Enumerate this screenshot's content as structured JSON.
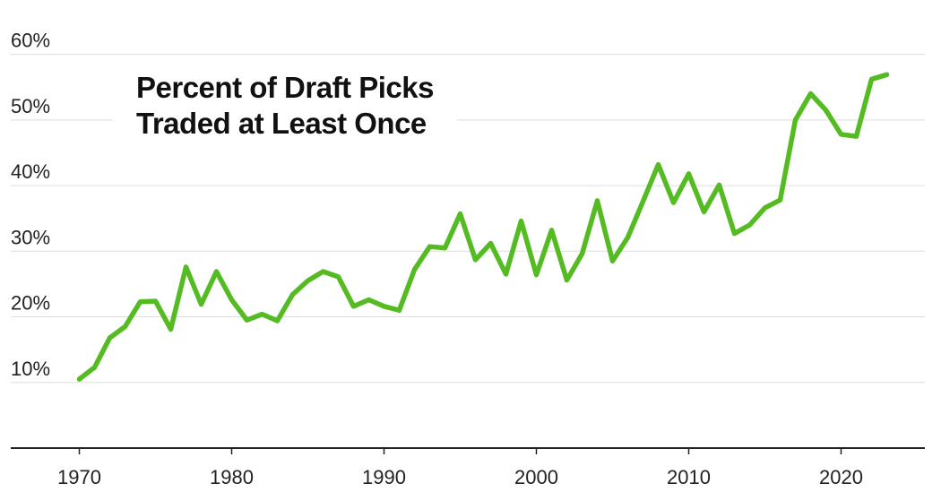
{
  "chart_data": {
    "type": "line",
    "title": "",
    "xlabel": "",
    "ylabel": "",
    "x": [
      1970,
      1971,
      1972,
      1973,
      1974,
      1975,
      1976,
      1977,
      1978,
      1979,
      1980,
      1981,
      1982,
      1983,
      1984,
      1985,
      1986,
      1987,
      1988,
      1989,
      1990,
      1991,
      1992,
      1993,
      1994,
      1995,
      1996,
      1997,
      1998,
      1999,
      2000,
      2001,
      2002,
      2003,
      2004,
      2005,
      2006,
      2007,
      2008,
      2009,
      2010,
      2011,
      2012,
      2013,
      2014,
      2015,
      2016,
      2017,
      2018,
      2019,
      2020,
      2021,
      2022,
      2023
    ],
    "series": [
      {
        "values": [
          10.5,
          12.3,
          16.8,
          18.5,
          22.3,
          22.4,
          18.1,
          27.6,
          21.9,
          26.9,
          22.6,
          19.5,
          20.4,
          19.4,
          23.4,
          25.5,
          26.9,
          26.1,
          21.6,
          22.6,
          21.6,
          21.0,
          27.2,
          30.7,
          30.5,
          35.7,
          28.7,
          31.2,
          26.5,
          34.6,
          26.4,
          33.2,
          25.6,
          29.6,
          37.7,
          28.5,
          32.1,
          37.6,
          43.2,
          37.4,
          41.8,
          36.0,
          40.1,
          32.7,
          34.0,
          36.6,
          37.8,
          50.0,
          54.0,
          51.5,
          47.8,
          47.5,
          56.2,
          56.9
        ]
      }
    ],
    "xlim": [
      1965.5,
      2025.5
    ],
    "ylim": [
      0,
      65
    ],
    "xticks": [
      1970,
      1980,
      1990,
      2000,
      2010,
      2020
    ],
    "yticks": [
      10,
      20,
      30,
      40,
      50,
      60
    ],
    "ytick_suffix": "%",
    "grid": true,
    "legend": "none",
    "line_color": "#55bb22"
  },
  "title_lines": [
    "Percent of Draft Picks",
    "Traded at Least Once"
  ]
}
